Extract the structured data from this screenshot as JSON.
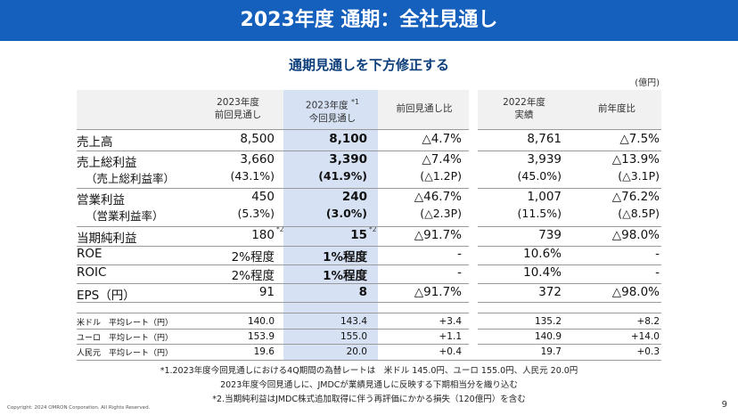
{
  "header": {
    "title": "2023年度 通期：全社見通し"
  },
  "subtitle": "通期見通しを下方修正する",
  "unit": "(億円)",
  "columns": {
    "prev_forecast": {
      "line1": "2023年度",
      "line2": "前回見通し"
    },
    "curr_forecast": {
      "line1": "2023年度",
      "note": "*1",
      "line2": "今回見通し"
    },
    "vs_prev": "前回見通し比",
    "fy2022": {
      "line1": "2022年度",
      "line2": "実績"
    },
    "yoy": "前年度比"
  },
  "rows": [
    {
      "label": "売上高",
      "prev": "8,500",
      "curr": "8,100",
      "vs_prev": "△4.7%",
      "fy2022": "8,761",
      "yoy": "△7.5%"
    },
    {
      "label": "売上総利益",
      "prev": "3,660",
      "curr": "3,390",
      "vs_prev": "△7.4%",
      "fy2022": "3,939",
      "yoy": "△13.9%"
    },
    {
      "label": "（売上総利益率）",
      "prev": "(43.1%)",
      "curr": "(41.9%)",
      "vs_prev": "(△1.2P)",
      "fy2022": "(45.0%)",
      "yoy": "(△3.1P)"
    },
    {
      "label": "営業利益",
      "prev": "450",
      "curr": "240",
      "vs_prev": "△46.7%",
      "fy2022": "1,007",
      "yoy": "△76.2%"
    },
    {
      "label": "（営業利益率）",
      "prev": "(5.3%)",
      "curr": "(3.0%)",
      "vs_prev": "(△2.3P)",
      "fy2022": "(11.5%)",
      "yoy": "(△8.5P)"
    },
    {
      "label": "当期純利益",
      "prev": "180",
      "prev_note": "*2",
      "curr": "15",
      "curr_note": "*2",
      "vs_prev": "△91.7%",
      "fy2022": "739",
      "yoy": "△98.0%"
    },
    {
      "label": "ROE",
      "prev": "2%程度",
      "curr": "1%程度",
      "vs_prev": "-",
      "fy2022": "10.6%",
      "yoy": "-"
    },
    {
      "label": "ROIC",
      "prev": "2%程度",
      "curr": "1%程度",
      "vs_prev": "-",
      "fy2022": "10.4%",
      "yoy": "-"
    },
    {
      "label": "EPS（円）",
      "prev": "91",
      "curr": "8",
      "vs_prev": "△91.7%",
      "fy2022": "372",
      "yoy": "△98.0%"
    }
  ],
  "fx_rows": [
    {
      "label": "米ドル　平均レート（円）",
      "prev": "140.0",
      "curr": "143.4",
      "vs_prev": "+3.4",
      "fy2022": "135.2",
      "yoy": "+8.2"
    },
    {
      "label": "ユーロ　平均レート（円）",
      "prev": "153.9",
      "curr": "155.0",
      "vs_prev": "+1.1",
      "fy2022": "140.9",
      "yoy": "+14.0"
    },
    {
      "label": "人民元　平均レート（円）",
      "prev": "19.6",
      "curr": "20.0",
      "vs_prev": "+0.4",
      "fy2022": "19.7",
      "yoy": "+0.3"
    }
  ],
  "notes": [
    "*1.2023年度今回見通しにおける4Q期間の為替レートは　米ドル 145.0円、ユーロ 155.0円、人民元 20.0円",
    "2023年度今回見通しに、JMDCが業績見通しに反映する下期相当分を織り込む",
    "*2.当期純利益はJMDC株式追加取得に伴う再評価にかかる損失（120億円）を含む"
  ],
  "footer": {
    "copyright": "Copyright: 2024 OMRON Corporation. All Rights Reserved.",
    "page": "9"
  },
  "colors": {
    "title_bar": "#1560bd",
    "highlight": "#d6e2f4",
    "subtitle": "#0b3d7a"
  }
}
